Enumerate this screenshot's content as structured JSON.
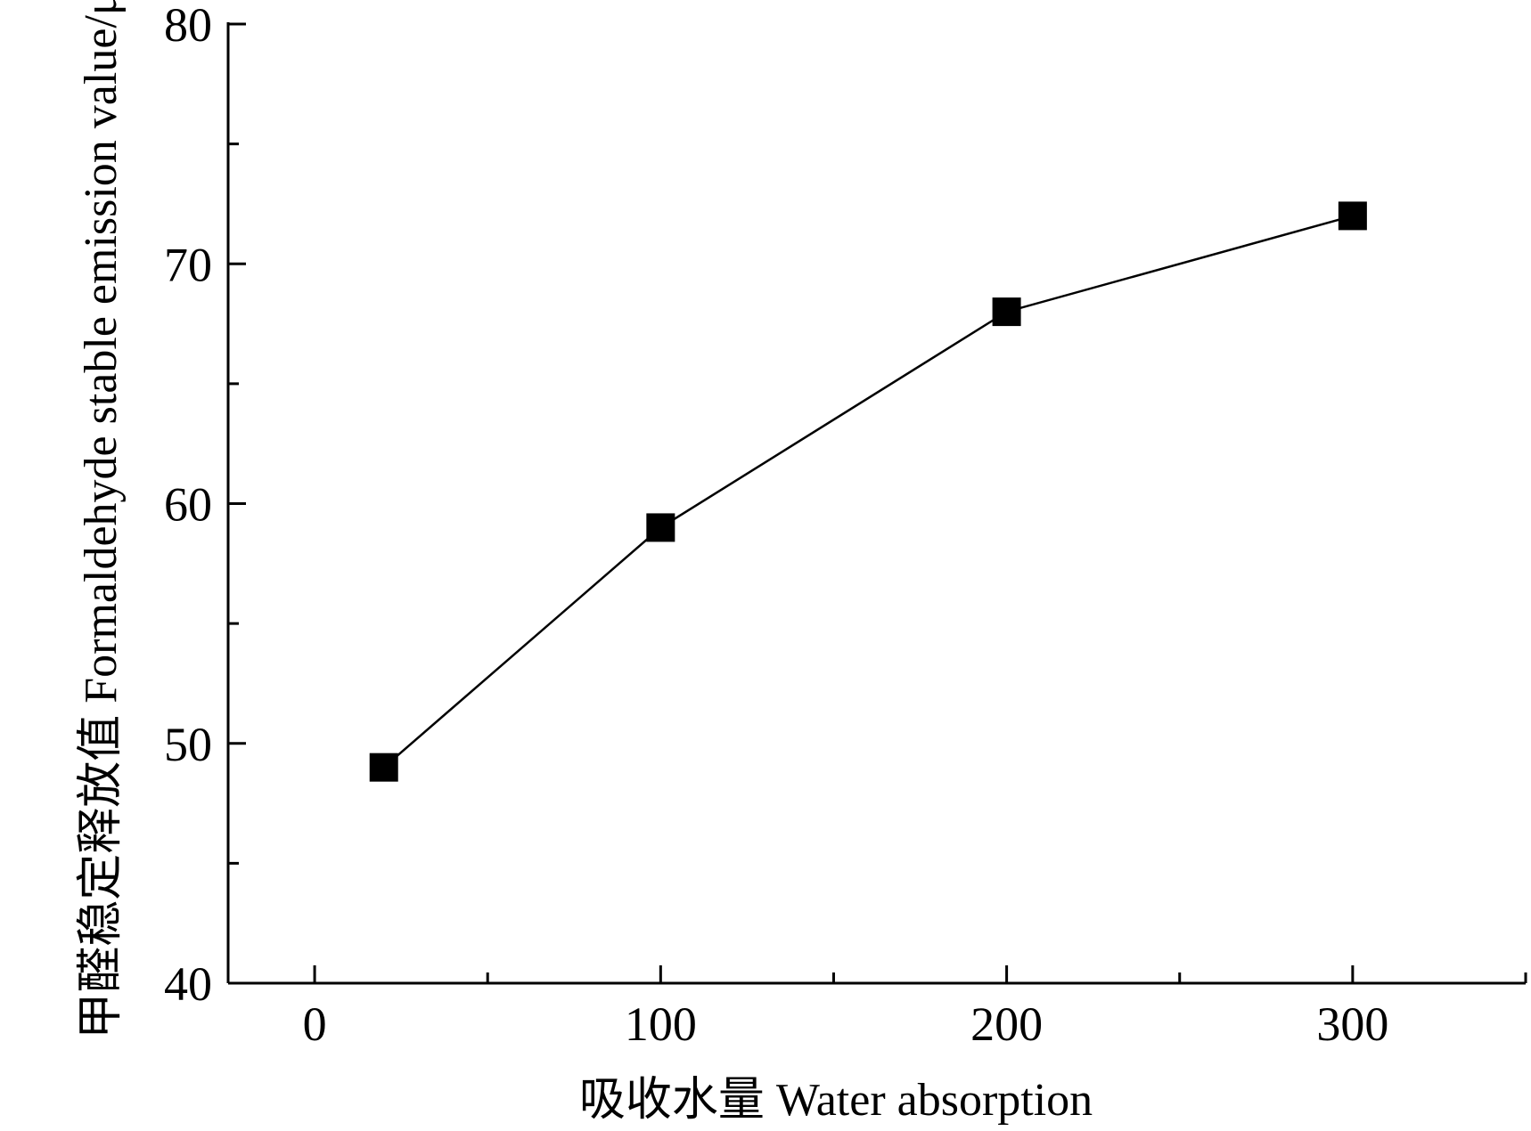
{
  "chart_data": {
    "type": "line",
    "xlabel": "吸收水量  Water absorption",
    "ylabel": "甲醛稳定释放值 Formaldehyde stable emission value/μg",
    "xlim": [
      -25,
      350
    ],
    "ylim": [
      40,
      80
    ],
    "x_ticks": [
      0,
      100,
      200,
      300
    ],
    "x_minor_ticks": [
      50,
      150,
      250,
      350
    ],
    "y_ticks": [
      40,
      50,
      60,
      70,
      80
    ],
    "y_minor_ticks": [
      45,
      55,
      65,
      75
    ],
    "series": [
      {
        "marker": "square",
        "color": "#000000",
        "x": [
          20,
          100,
          200,
          300
        ],
        "y": [
          49,
          59,
          68,
          72
        ]
      }
    ],
    "grid": false,
    "legend": "none"
  }
}
